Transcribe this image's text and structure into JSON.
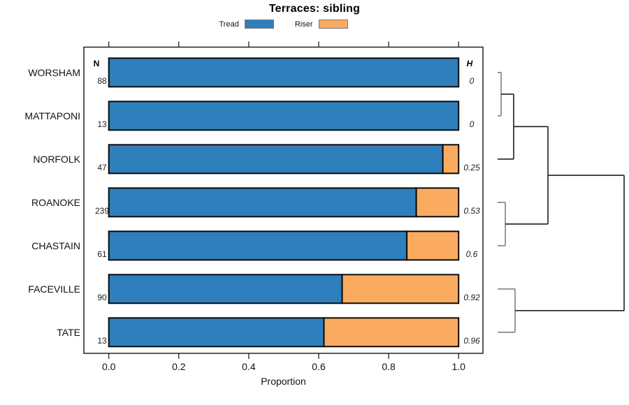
{
  "title": "Terraces: sibling",
  "legend": {
    "items": [
      {
        "label": "Tread",
        "color": "#2e7fbc"
      },
      {
        "label": "Riser",
        "color": "#fbab60"
      }
    ]
  },
  "columns": {
    "n_header": "N",
    "h_header": "H"
  },
  "axis": {
    "label": "Proportion",
    "tick_labels": [
      "0.0",
      "0.2",
      "0.4",
      "0.6",
      "0.8",
      "1.0"
    ],
    "tick_values": [
      0,
      0.2,
      0.4,
      0.6,
      0.8,
      1.0
    ]
  },
  "chart_data": {
    "type": "bar",
    "orientation": "horizontal",
    "stacked": true,
    "title": "Terraces: sibling",
    "xlabel": "Proportion",
    "xlim": [
      0,
      1
    ],
    "grid": false,
    "legend_position": "top",
    "categories": [
      "WORSHAM",
      "MATTAPONI",
      "NORFOLK",
      "ROANOKE",
      "CHASTAIN",
      "FACEVILLE",
      "TATE"
    ],
    "n_values": [
      88,
      13,
      47,
      239,
      61,
      90,
      13
    ],
    "h_values": [
      "0",
      "0",
      "0.25",
      "0.53",
      "0.6",
      "0.92",
      "0.96"
    ],
    "series": [
      {
        "name": "Tread",
        "color": "#2e7fbc",
        "values": [
          1.0,
          1.0,
          0.955,
          0.879,
          0.852,
          0.667,
          0.615
        ]
      },
      {
        "name": "Riser",
        "color": "#fbab60",
        "values": [
          0.0,
          0.0,
          0.045,
          0.121,
          0.148,
          0.333,
          0.385
        ]
      }
    ],
    "bar_stroke": "#0a0a0a",
    "dendrogram": {
      "description": "right-margin cluster tree over the 7 rows, leaves top to bottom",
      "line_color_pair": "#808080",
      "line_color_branch": "#1f1f1f",
      "merges": [
        {
          "a": "L0",
          "b": "L1",
          "h": 0.028
        },
        {
          "a": "M0",
          "b": "L2",
          "h": 0.127
        },
        {
          "a": "L3",
          "b": "L4",
          "h": 0.061
        },
        {
          "a": "M1",
          "b": "M2",
          "h": 0.398
        },
        {
          "a": "L5",
          "b": "L6",
          "h": 0.138
        },
        {
          "a": "M3",
          "b": "M4",
          "h": 1.0
        }
      ]
    }
  }
}
